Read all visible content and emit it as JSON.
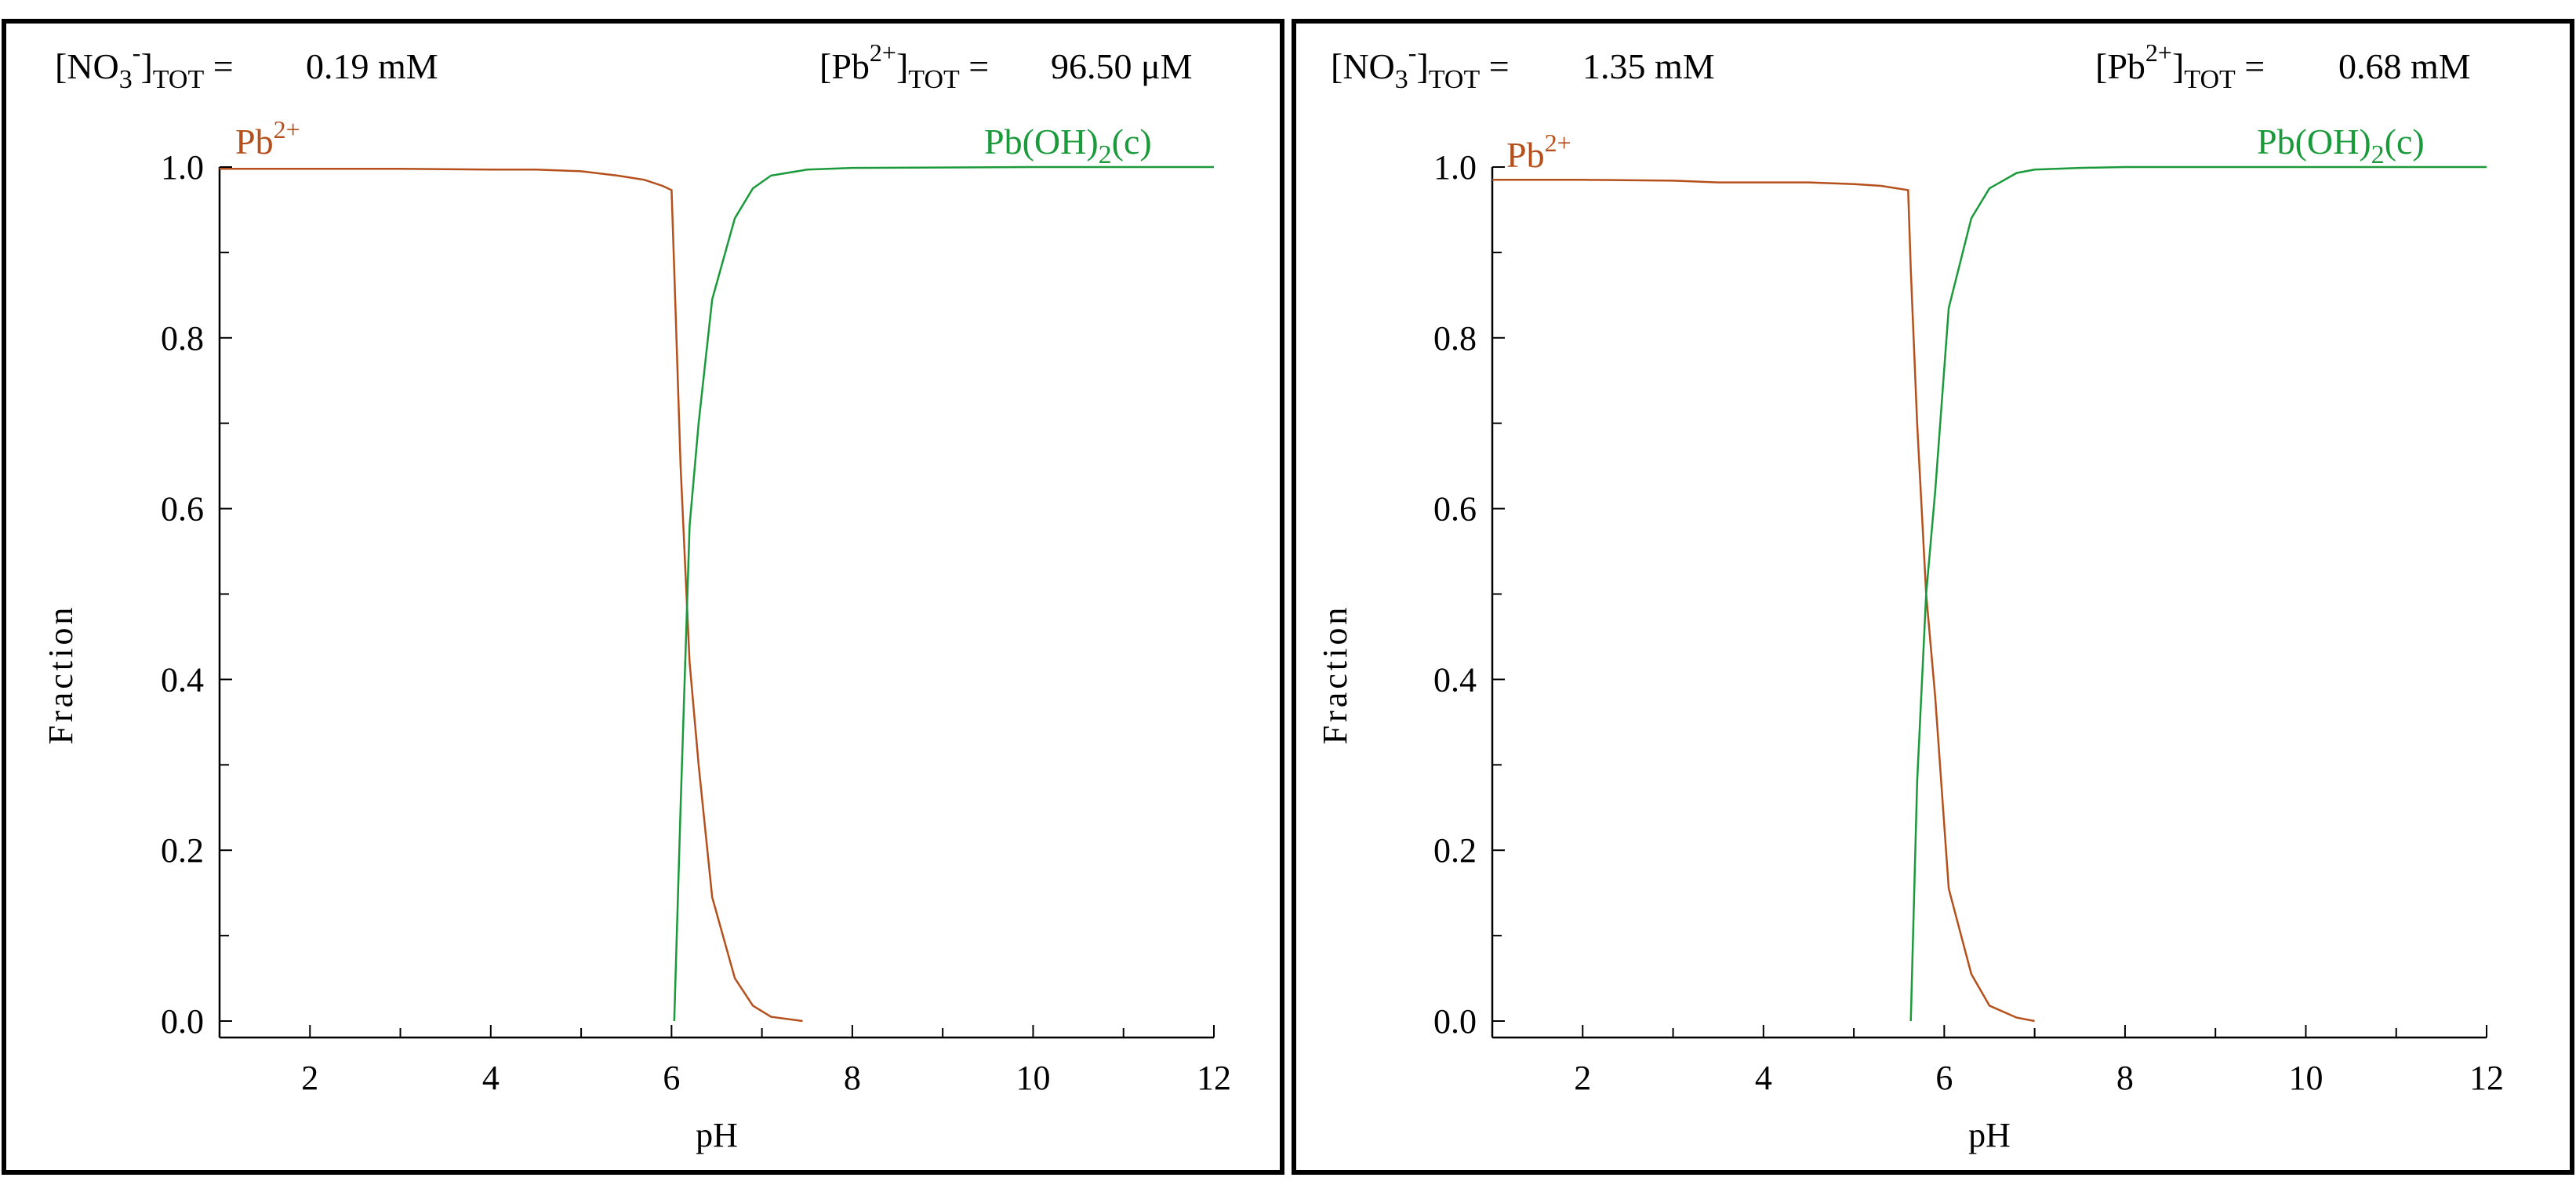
{
  "chart_data": [
    {
      "type": "line",
      "xlabel": "pH",
      "ylabel": "Fraction",
      "xlim": [
        1,
        12
      ],
      "ylim": [
        0,
        1
      ],
      "x_ticks": [
        "2",
        "4",
        "6",
        "8",
        "10",
        "12"
      ],
      "y_ticks": [
        "0.0",
        "0.2",
        "0.4",
        "0.6",
        "0.8",
        "1.0"
      ],
      "header": {
        "left": {
          "species": "NO",
          "sub": "3",
          "sup": "-",
          "bracket_sub": "TOT",
          "value": "0.19 mM"
        },
        "right": {
          "species": "Pb",
          "sup": "2+",
          "bracket_sub": "TOT",
          "value": "96.50 μM"
        }
      },
      "series": [
        {
          "name": "Pb2+",
          "label_main": "Pb",
          "label_sup": "2+",
          "color": "#b5501c",
          "x": [
            1.0,
            2.0,
            3.0,
            4.0,
            4.5,
            5.0,
            5.4,
            5.7,
            5.9,
            6.0,
            6.03,
            6.1,
            6.2,
            6.3,
            6.45,
            6.7,
            6.9,
            7.1,
            7.45
          ],
          "y": [
            0.998,
            0.998,
            0.998,
            0.997,
            0.997,
            0.995,
            0.99,
            0.985,
            0.978,
            0.973,
            0.88,
            0.65,
            0.42,
            0.3,
            0.145,
            0.05,
            0.018,
            0.005,
            0.0
          ]
        },
        {
          "name": "Pb(OH)2(c)",
          "label_main": "Pb(OH)",
          "label_sub": "2",
          "label_tail": "(c)",
          "color": "#1a9a3a",
          "x": [
            6.03,
            6.1,
            6.2,
            6.3,
            6.45,
            6.7,
            6.9,
            7.1,
            7.5,
            8.0,
            10.0,
            12.0
          ],
          "y": [
            0.0,
            0.25,
            0.58,
            0.7,
            0.845,
            0.94,
            0.975,
            0.99,
            0.997,
            0.999,
            1.0,
            1.0
          ]
        }
      ]
    },
    {
      "type": "line",
      "xlabel": "pH",
      "ylabel": "Fraction",
      "xlim": [
        1,
        12
      ],
      "ylim": [
        0,
        1
      ],
      "x_ticks": [
        "2",
        "4",
        "6",
        "8",
        "10",
        "12"
      ],
      "y_ticks": [
        "0.0",
        "0.2",
        "0.4",
        "0.6",
        "0.8",
        "1.0"
      ],
      "header": {
        "left": {
          "species": "NO",
          "sub": "3",
          "sup": "-",
          "bracket_sub": "TOT",
          "value": "1.35 mM"
        },
        "right": {
          "species": "Pb",
          "sup": "2+",
          "bracket_sub": "TOT",
          "value": "0.68 mM"
        }
      },
      "series": [
        {
          "name": "Pb2+",
          "label_main": "Pb",
          "label_sup": "2+",
          "color": "#b5501c",
          "x": [
            1.0,
            2.0,
            3.0,
            3.5,
            4.0,
            4.5,
            5.0,
            5.3,
            5.6,
            5.63,
            5.7,
            5.8,
            5.9,
            6.05,
            6.3,
            6.5,
            6.8,
            7.0
          ],
          "y": [
            0.985,
            0.985,
            0.984,
            0.982,
            0.982,
            0.982,
            0.98,
            0.978,
            0.973,
            0.88,
            0.7,
            0.5,
            0.38,
            0.155,
            0.055,
            0.018,
            0.004,
            0.0
          ]
        },
        {
          "name": "Pb(OH)2(c)",
          "label_main": "Pb(OH)",
          "label_sub": "2",
          "label_tail": "(c)",
          "color": "#1a9a3a",
          "x": [
            5.63,
            5.7,
            5.8,
            5.9,
            6.05,
            6.3,
            6.5,
            6.8,
            7.0,
            7.5,
            8.0,
            10.0,
            12.0
          ],
          "y": [
            0.0,
            0.28,
            0.5,
            0.62,
            0.835,
            0.94,
            0.975,
            0.993,
            0.997,
            0.999,
            1.0,
            1.0,
            1.0
          ]
        }
      ]
    }
  ]
}
